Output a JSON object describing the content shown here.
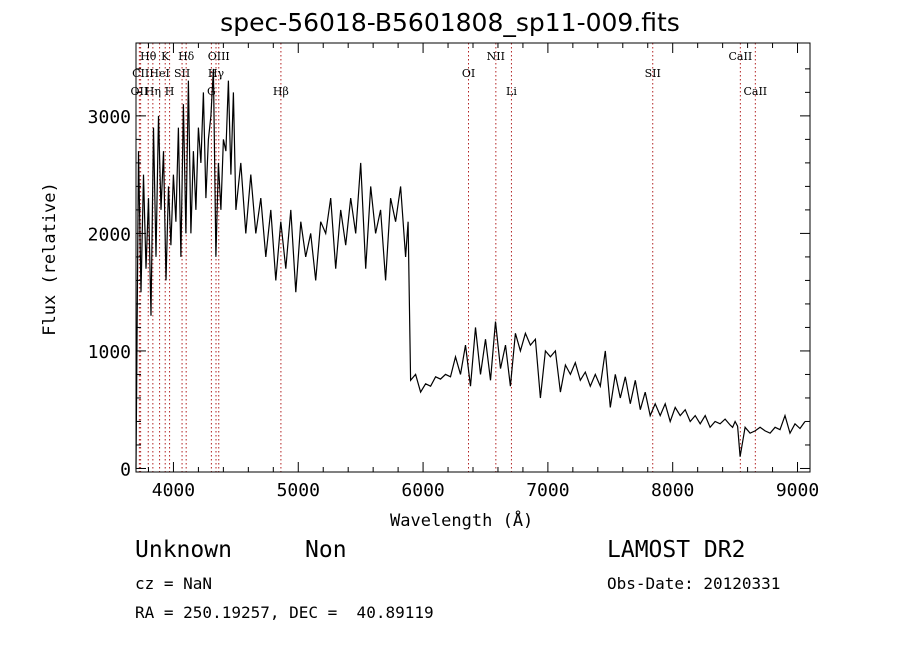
{
  "header": {
    "title": "spec-56018-B5601808_sp11-009.fits"
  },
  "footer": {
    "object_name": "Unknown",
    "object_class": "Non",
    "survey": "LAMOST DR2",
    "cz": "cz = NaN",
    "obs_date": "Obs-Date: 20120331",
    "radec": "RA = 250.19257, DEC =  40.89119"
  },
  "chart_data": {
    "type": "line",
    "title": "spec-56018-B5601808_sp11-009.fits",
    "xlabel": "Wavelength (Å)",
    "ylabel": "Flux (relative)",
    "xlim": [
      3700,
      9100
    ],
    "ylim": [
      -30,
      3620
    ],
    "xticks": [
      4000,
      5000,
      6000,
      7000,
      8000,
      9000
    ],
    "yticks": [
      0,
      1000,
      2000,
      3000
    ],
    "grid": false,
    "line_color": "#000000",
    "marker_color": "#b22222",
    "series": [
      {
        "x": [
          3700,
          3720,
          3740,
          3760,
          3780,
          3800,
          3820,
          3840,
          3860,
          3880,
          3900,
          3920,
          3940,
          3960,
          3980,
          4000,
          4020,
          4040,
          4060,
          4080,
          4100,
          4120,
          4140,
          4160,
          4180,
          4200,
          4220,
          4240,
          4260,
          4280,
          4300,
          4320,
          4340,
          4360,
          4380,
          4400,
          4420,
          4440,
          4460,
          4480,
          4500,
          4540,
          4580,
          4620,
          4660,
          4700,
          4740,
          4780,
          4820,
          4860,
          4900,
          4940,
          4980,
          5020,
          5060,
          5100,
          5140,
          5180,
          5220,
          5260,
          5300,
          5340,
          5380,
          5420,
          5460,
          5500,
          5540,
          5580,
          5620,
          5660,
          5700,
          5740,
          5780,
          5820,
          5860,
          5880,
          5900,
          5940,
          5980,
          6020,
          6060,
          6100,
          6140,
          6180,
          6220,
          6260,
          6300,
          6340,
          6380,
          6420,
          6460,
          6500,
          6540,
          6580,
          6620,
          6660,
          6700,
          6740,
          6780,
          6820,
          6860,
          6900,
          6940,
          6980,
          7020,
          7060,
          7100,
          7140,
          7180,
          7220,
          7260,
          7300,
          7340,
          7380,
          7420,
          7460,
          7500,
          7540,
          7580,
          7620,
          7660,
          7700,
          7740,
          7780,
          7820,
          7860,
          7900,
          7940,
          7980,
          8020,
          8060,
          8100,
          8140,
          8180,
          8220,
          8260,
          8300,
          8340,
          8380,
          8420,
          8460,
          8480,
          8500,
          8520,
          8540,
          8580,
          8620,
          8660,
          8700,
          8740,
          8780,
          8820,
          8860,
          8900,
          8940,
          8980,
          9020,
          9060
        ],
        "y": [
          0,
          2700,
          1500,
          2500,
          1700,
          2300,
          1300,
          2900,
          1800,
          3000,
          2200,
          2700,
          1600,
          2400,
          1900,
          2500,
          2100,
          2900,
          1800,
          3100,
          2000,
          3300,
          2000,
          2700,
          2200,
          2900,
          2600,
          3200,
          2300,
          2800,
          3000,
          3400,
          1800,
          2600,
          2200,
          2800,
          2700,
          3300,
          2500,
          3200,
          2200,
          2600,
          2000,
          2500,
          2000,
          2300,
          1800,
          2200,
          1600,
          2100,
          1700,
          2200,
          1500,
          2100,
          1800,
          2000,
          1600,
          2100,
          2000,
          2300,
          1700,
          2200,
          1900,
          2300,
          2000,
          2600,
          1700,
          2400,
          2000,
          2200,
          1600,
          2300,
          2100,
          2400,
          1800,
          2100,
          750,
          800,
          650,
          720,
          700,
          780,
          760,
          800,
          780,
          950,
          800,
          1050,
          700,
          1200,
          800,
          1100,
          750,
          1250,
          850,
          1050,
          700,
          1150,
          1000,
          1150,
          1050,
          1100,
          600,
          1000,
          950,
          1000,
          650,
          880,
          800,
          900,
          750,
          820,
          700,
          800,
          700,
          1000,
          520,
          800,
          600,
          780,
          550,
          750,
          500,
          650,
          450,
          550,
          450,
          550,
          400,
          520,
          450,
          500,
          400,
          450,
          380,
          450,
          350,
          400,
          380,
          420,
          370,
          350,
          400,
          360,
          100,
          350,
          300,
          320,
          350,
          320,
          300,
          350,
          330,
          450,
          300,
          380,
          340,
          400
        ]
      }
    ],
    "line_markers": [
      {
        "label": "Hθ",
        "x": 3798,
        "row": 1
      },
      {
        "label": "CII",
        "x": 3737,
        "row": 2
      },
      {
        "label": "OII",
        "x": 3727,
        "row": 3
      },
      {
        "label": "Hη",
        "x": 3835,
        "row": 3
      },
      {
        "label": "K",
        "x": 3934,
        "row": 1
      },
      {
        "label": "HeI",
        "x": 3889,
        "row": 2
      },
      {
        "label": "H",
        "x": 3969,
        "row": 3
      },
      {
        "label": "SII",
        "x": 4069,
        "row": 2
      },
      {
        "label": "Hδ",
        "x": 4102,
        "row": 1
      },
      {
        "label": "OIII",
        "x": 4363,
        "row": 1
      },
      {
        "label": "Hγ",
        "x": 4341,
        "row": 2
      },
      {
        "label": "G",
        "x": 4304,
        "row": 3
      },
      {
        "label": "Hβ",
        "x": 4861,
        "row": 3
      },
      {
        "label": "OI",
        "x": 6364,
        "row": 2
      },
      {
        "label": "NII",
        "x": 6583,
        "row": 1
      },
      {
        "label": "Li",
        "x": 6708,
        "row": 3
      },
      {
        "label": "SII",
        "x": 7840,
        "row": 2
      },
      {
        "label": "CaII",
        "x": 8542,
        "row": 1
      },
      {
        "label": "CaII",
        "x": 8662,
        "row": 3
      }
    ]
  }
}
